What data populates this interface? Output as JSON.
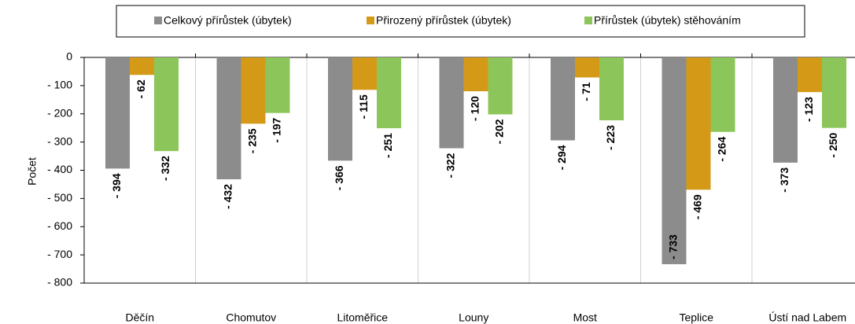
{
  "chart_data": {
    "type": "bar",
    "y_label": "Počet",
    "categories": [
      "Děčín",
      "Chomutov",
      "Litoměřice",
      "Louny",
      "Most",
      "Teplice",
      "Ústí nad Labem"
    ],
    "series": [
      {
        "name": "Celkový přírůstek (úbytek)",
        "color": "#8c8c8c",
        "label_color": "#000000",
        "values": [
          -394,
          -432,
          -366,
          -322,
          -294,
          -733,
          -373
        ],
        "value_labels": [
          "- 394",
          "- 432",
          "- 366",
          "- 322",
          "- 294",
          "- 733",
          "- 373"
        ]
      },
      {
        "name": "Přirozený přírůstek (úbytek)",
        "color": "#d49a17",
        "label_color": "#d49a17",
        "values": [
          -62,
          -235,
          -115,
          -120,
          -71,
          -469,
          -123
        ],
        "value_labels": [
          "- 62",
          "- 235",
          "- 115",
          "- 120",
          "- 71",
          "- 469",
          "- 123"
        ]
      },
      {
        "name": "Přírůstek (úbytek) stěhováním",
        "color": "#8cc65a",
        "label_color": "#6fb33a",
        "values": [
          -332,
          -197,
          -251,
          -202,
          -223,
          -264,
          -250
        ],
        "value_labels": [
          "- 332",
          "- 197",
          "- 251",
          "- 202",
          "- 223",
          "- 264",
          "- 250"
        ]
      }
    ],
    "ylim": [
      -800,
      0
    ],
    "yticks": [
      {
        "value": 0,
        "label": "0"
      },
      {
        "value": -100,
        "label": "- 100"
      },
      {
        "value": -200,
        "label": "- 200"
      },
      {
        "value": -300,
        "label": "- 300"
      },
      {
        "value": -400,
        "label": "- 400"
      },
      {
        "value": -500,
        "label": "- 500"
      },
      {
        "value": -600,
        "label": "- 600"
      },
      {
        "value": -700,
        "label": "- 700"
      },
      {
        "value": -800,
        "label": "- 800"
      }
    ],
    "legend": "top"
  }
}
